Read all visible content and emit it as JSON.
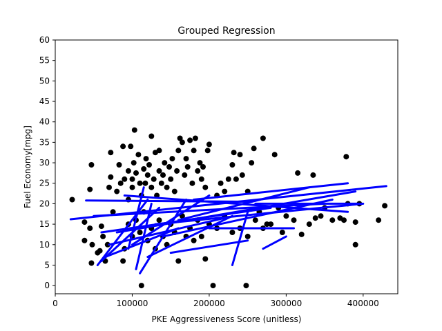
{
  "chart_data": {
    "type": "scatter",
    "title": "Grouped Regression",
    "xlabel": "PKE Aggressiveness Score (unitless)",
    "ylabel": "Fuel Economy[mpg]",
    "xlim": [
      0,
      445000
    ],
    "ylim": [
      -2,
      60
    ],
    "xticks": [
      0,
      100000,
      200000,
      300000,
      400000
    ],
    "yticks": [
      0,
      5,
      10,
      15,
      20,
      25,
      30,
      35,
      40,
      45,
      50,
      55,
      60
    ],
    "grid": false,
    "legend": "none",
    "colors": {
      "points": "#000000",
      "lines": "#0000ff"
    },
    "points": [
      [
        22000,
        21
      ],
      [
        38000,
        15.5
      ],
      [
        38000,
        11
      ],
      [
        45000,
        23.5
      ],
      [
        45000,
        14
      ],
      [
        47000,
        29.5
      ],
      [
        47000,
        5.5
      ],
      [
        48000,
        10
      ],
      [
        55000,
        8
      ],
      [
        58000,
        8.5
      ],
      [
        60000,
        14.5
      ],
      [
        62000,
        12
      ],
      [
        65000,
        6
      ],
      [
        68000,
        10
      ],
      [
        70000,
        24
      ],
      [
        72000,
        26.5
      ],
      [
        72000,
        32.5
      ],
      [
        75000,
        18
      ],
      [
        80000,
        23
      ],
      [
        83000,
        29.5
      ],
      [
        85000,
        25
      ],
      [
        88000,
        34
      ],
      [
        88000,
        6
      ],
      [
        90000,
        26
      ],
      [
        95000,
        28
      ],
      [
        95000,
        21
      ],
      [
        98000,
        34
      ],
      [
        100000,
        24
      ],
      [
        100000,
        26
      ],
      [
        102000,
        30
      ],
      [
        103000,
        38
      ],
      [
        105000,
        27.5
      ],
      [
        108000,
        32
      ],
      [
        110000,
        25
      ],
      [
        112000,
        0
      ],
      [
        112000,
        22
      ],
      [
        115000,
        28.5
      ],
      [
        117000,
        25
      ],
      [
        118000,
        31
      ],
      [
        120000,
        27
      ],
      [
        122000,
        29.5
      ],
      [
        125000,
        36.5
      ],
      [
        125000,
        24
      ],
      [
        128000,
        26
      ],
      [
        130000,
        32.5
      ],
      [
        132000,
        22
      ],
      [
        135000,
        28
      ],
      [
        135000,
        33
      ],
      [
        138000,
        25
      ],
      [
        140000,
        27
      ],
      [
        142000,
        30
      ],
      [
        145000,
        24
      ],
      [
        148000,
        29
      ],
      [
        150000,
        26
      ],
      [
        152000,
        31
      ],
      [
        155000,
        23
      ],
      [
        158000,
        28
      ],
      [
        160000,
        33
      ],
      [
        162000,
        36
      ],
      [
        165000,
        35
      ],
      [
        168000,
        27
      ],
      [
        170000,
        31
      ],
      [
        172000,
        29
      ],
      [
        175000,
        35.5
      ],
      [
        178000,
        25
      ],
      [
        180000,
        33
      ],
      [
        182000,
        36
      ],
      [
        185000,
        28
      ],
      [
        188000,
        30
      ],
      [
        190000,
        26
      ],
      [
        192000,
        29
      ],
      [
        195000,
        24
      ],
      [
        198000,
        33
      ],
      [
        200000,
        34.5
      ],
      [
        205000,
        0
      ],
      [
        210000,
        22
      ],
      [
        215000,
        25
      ],
      [
        220000,
        23
      ],
      [
        225000,
        26
      ],
      [
        230000,
        29.5
      ],
      [
        232000,
        32.5
      ],
      [
        235000,
        26
      ],
      [
        240000,
        32
      ],
      [
        243000,
        27
      ],
      [
        248000,
        0
      ],
      [
        250000,
        23
      ],
      [
        255000,
        30
      ],
      [
        258000,
        33.5
      ],
      [
        265000,
        18
      ],
      [
        270000,
        36
      ],
      [
        275000,
        15
      ],
      [
        285000,
        32
      ],
      [
        290000,
        19
      ],
      [
        300000,
        17
      ],
      [
        310000,
        16
      ],
      [
        315000,
        27.5
      ],
      [
        320000,
        12.5
      ],
      [
        330000,
        15
      ],
      [
        335000,
        27
      ],
      [
        338000,
        16.5
      ],
      [
        345000,
        17
      ],
      [
        350000,
        19
      ],
      [
        360000,
        16
      ],
      [
        370000,
        16.5
      ],
      [
        375000,
        16
      ],
      [
        378000,
        31.5
      ],
      [
        380000,
        20
      ],
      [
        390000,
        15.5
      ],
      [
        390000,
        10
      ],
      [
        395000,
        20
      ],
      [
        420000,
        16
      ],
      [
        428000,
        19.5
      ],
      [
        90000,
        9
      ],
      [
        95000,
        15
      ],
      [
        100000,
        12
      ],
      [
        105000,
        16
      ],
      [
        110000,
        13
      ],
      [
        115000,
        18
      ],
      [
        120000,
        11
      ],
      [
        125000,
        14
      ],
      [
        130000,
        9
      ],
      [
        135000,
        16
      ],
      [
        140000,
        12
      ],
      [
        145000,
        10
      ],
      [
        150000,
        15
      ],
      [
        155000,
        13
      ],
      [
        160000,
        6
      ],
      [
        165000,
        17
      ],
      [
        170000,
        12
      ],
      [
        175000,
        14
      ],
      [
        180000,
        11
      ],
      [
        185000,
        16
      ],
      [
        190000,
        12
      ],
      [
        195000,
        6.5
      ],
      [
        200000,
        15
      ],
      [
        210000,
        14
      ],
      [
        220000,
        17
      ],
      [
        230000,
        13
      ],
      [
        240000,
        14
      ],
      [
        250000,
        12
      ],
      [
        260000,
        16
      ],
      [
        270000,
        14
      ],
      [
        280000,
        15
      ],
      [
        295000,
        13
      ]
    ],
    "lines": [
      [
        [
          20000,
          16.2
        ],
        [
          430000,
          24.3
        ]
      ],
      [
        [
          40000,
          20.8
        ],
        [
          250000,
          20.5
        ]
      ],
      [
        [
          55000,
          5
        ],
        [
          120000,
          21
        ]
      ],
      [
        [
          60000,
          6
        ],
        [
          135000,
          19
        ]
      ],
      [
        [
          65000,
          7
        ],
        [
          160000,
          14
        ]
      ],
      [
        [
          70000,
          10
        ],
        [
          220000,
          16.5
        ]
      ],
      [
        [
          80000,
          13
        ],
        [
          390000,
          23
        ]
      ],
      [
        [
          90000,
          22
        ],
        [
          380000,
          18
        ]
      ],
      [
        [
          95000,
          9
        ],
        [
          115000,
          24
        ]
      ],
      [
        [
          100000,
          10
        ],
        [
          200000,
          22
        ]
      ],
      [
        [
          105000,
          4
        ],
        [
          125000,
          20
        ]
      ],
      [
        [
          110000,
          3
        ],
        [
          170000,
          21
        ]
      ],
      [
        [
          120000,
          7
        ],
        [
          230000,
          17
        ]
      ],
      [
        [
          130000,
          15
        ],
        [
          400000,
          20
        ]
      ],
      [
        [
          140000,
          12
        ],
        [
          360000,
          21
        ]
      ],
      [
        [
          150000,
          8
        ],
        [
          250000,
          11
        ]
      ],
      [
        [
          160000,
          16
        ],
        [
          330000,
          24
        ]
      ],
      [
        [
          180000,
          21
        ],
        [
          380000,
          25
        ]
      ],
      [
        [
          200000,
          14
        ],
        [
          310000,
          14
        ]
      ],
      [
        [
          230000,
          5
        ],
        [
          250000,
          18
        ]
      ],
      [
        [
          260000,
          20
        ],
        [
          395000,
          20
        ]
      ],
      [
        [
          270000,
          9
        ],
        [
          300000,
          12
        ]
      ],
      [
        [
          50000,
          17
        ],
        [
          350000,
          20
        ]
      ],
      [
        [
          60000,
          13
        ],
        [
          280000,
          19
        ]
      ]
    ]
  }
}
